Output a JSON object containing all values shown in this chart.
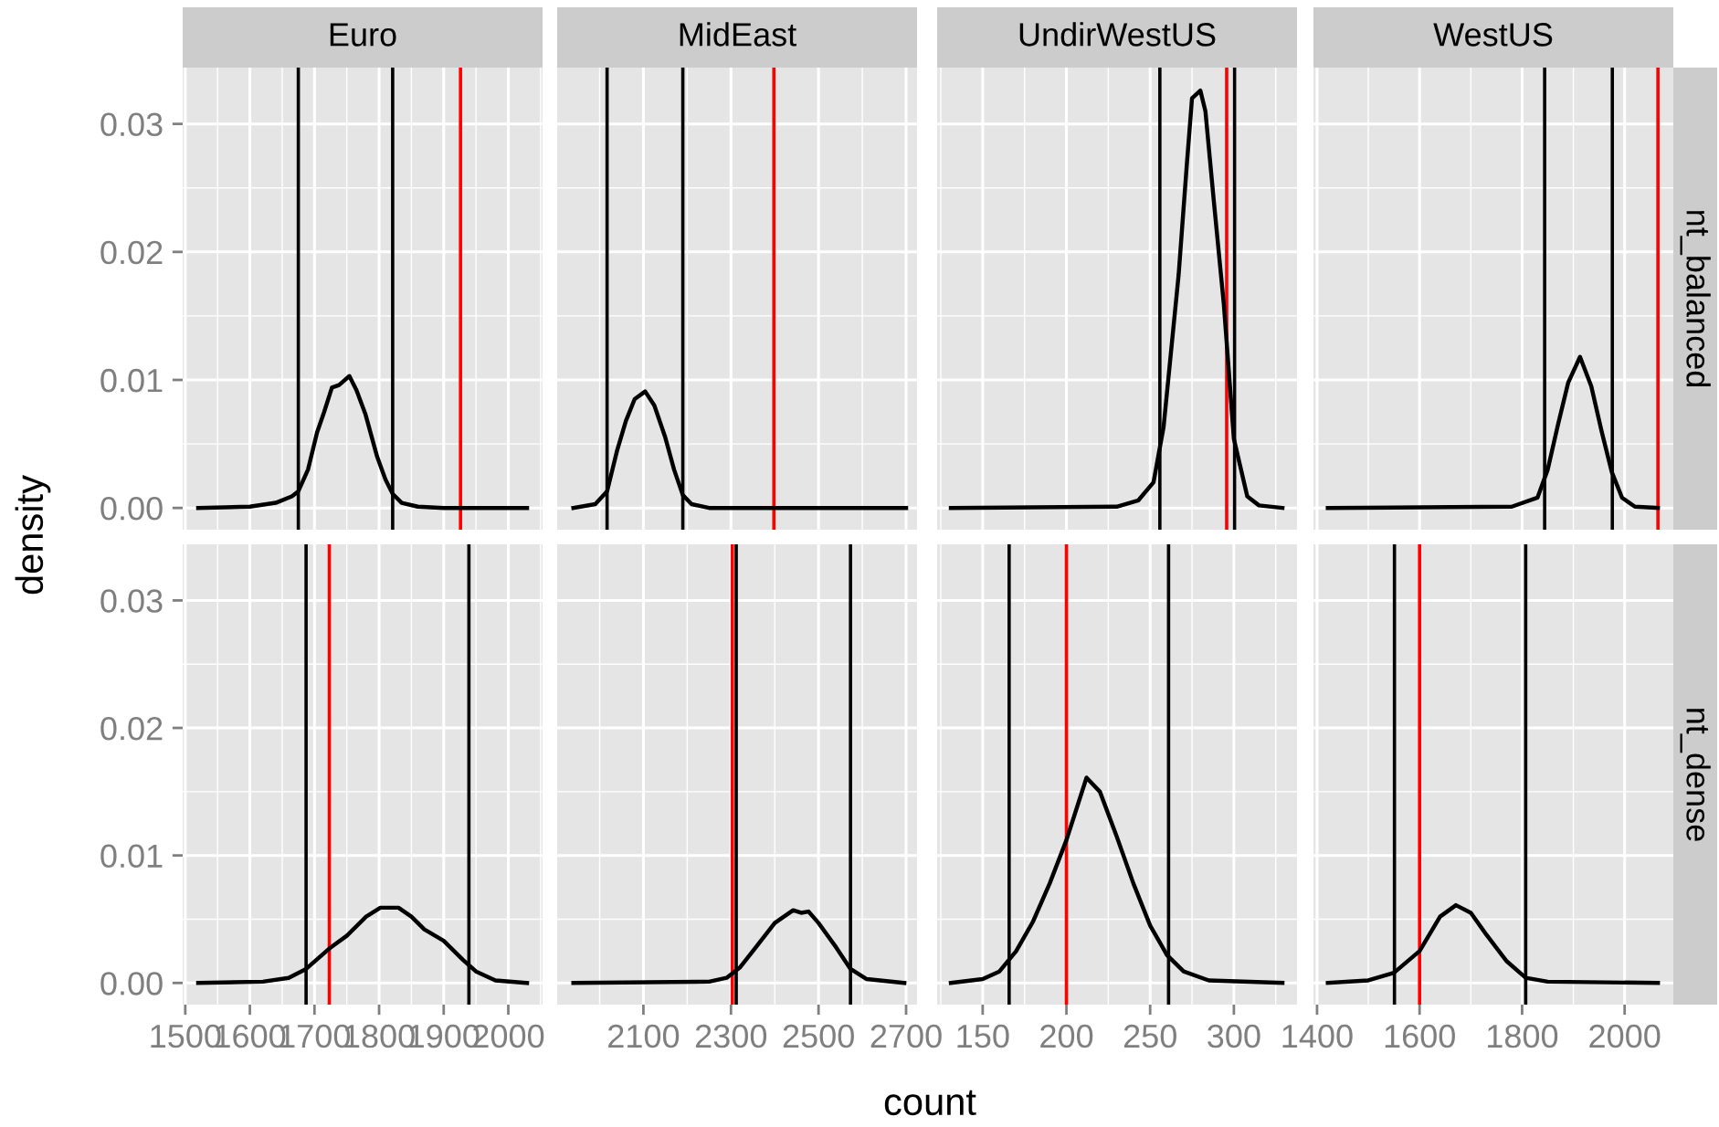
{
  "chart_data": [
    {
      "type": "line",
      "title": "Euro",
      "ylabel": "density",
      "tick_labels": "y",
      "grid": true,
      "xlim": [
        1496,
        2053
      ],
      "ylim": [
        -0.0017,
        0.0344
      ],
      "xticks": [
        {
          "value": 1500,
          "label": null
        },
        {
          "value": 1600,
          "label": null
        },
        {
          "value": 1700,
          "label": null
        },
        {
          "value": 1800,
          "label": null
        },
        {
          "value": 1900,
          "label": null
        },
        {
          "value": 2000,
          "label": null
        }
      ],
      "yticks": [
        {
          "value": 0,
          "label": "0.00"
        },
        {
          "value": 0.01,
          "label": "0.01"
        },
        {
          "value": 0.02,
          "label": "0.02"
        },
        {
          "value": 0.03,
          "label": "0.03"
        }
      ],
      "series": [
        {
          "color": "#000000",
          "x": [
            1520,
            1600,
            1640,
            1665,
            1675,
            1690,
            1704,
            1715,
            1727,
            1738,
            1754,
            1765,
            1779,
            1797,
            1810,
            1821,
            1835,
            1860,
            1900,
            2029
          ],
          "values": [
            0,
            0.0001,
            0.0004,
            0.0009,
            0.0013,
            0.003,
            0.0059,
            0.0075,
            0.0094,
            0.0096,
            0.0103,
            0.0092,
            0.0073,
            0.004,
            0.0022,
            0.0011,
            0.0004,
            0.0001,
            0,
            0
          ]
        }
      ],
      "ref_lines": [
        {
          "axis": "x",
          "value": 1675,
          "color": "#000000"
        },
        {
          "axis": "x",
          "value": 1821,
          "color": "#000000"
        },
        {
          "axis": "x",
          "value": 1926,
          "color": "#ff0000"
        }
      ]
    },
    {
      "type": "line",
      "title": "MidEast",
      "tick_labels": false,
      "grid": true,
      "xlim": [
        1903,
        2725
      ],
      "ylim": [
        -0.0017,
        0.0344
      ],
      "xticks": [
        {
          "value": 2100,
          "label": null
        },
        {
          "value": 2300,
          "label": null
        },
        {
          "value": 2500,
          "label": null
        },
        {
          "value": 2700,
          "label": null
        }
      ],
      "yticks": [
        {
          "value": 0,
          "label": null
        },
        {
          "value": 0.01,
          "label": null
        },
        {
          "value": 0.02,
          "label": null
        },
        {
          "value": 0.03,
          "label": null
        }
      ],
      "series": [
        {
          "color": "#000000",
          "x": [
            1940,
            1990,
            2017,
            2040,
            2060,
            2080,
            2104,
            2125,
            2150,
            2170,
            2190,
            2210,
            2250,
            2700
          ],
          "values": [
            0,
            0.0003,
            0.0013,
            0.0045,
            0.0068,
            0.0085,
            0.0091,
            0.008,
            0.0055,
            0.003,
            0.001,
            0.0003,
            0,
            0
          ]
        }
      ],
      "ref_lines": [
        {
          "axis": "x",
          "value": 2017,
          "color": "#000000"
        },
        {
          "axis": "x",
          "value": 2190,
          "color": "#000000"
        },
        {
          "axis": "x",
          "value": 2398,
          "color": "#ff0000"
        }
      ]
    },
    {
      "type": "line",
      "title": "UndirWestUS",
      "tick_labels": false,
      "grid": true,
      "xlim": [
        122.8,
        337.7
      ],
      "ylim": [
        -0.0017,
        0.0344
      ],
      "xticks": [
        {
          "value": 150,
          "label": null
        },
        {
          "value": 200,
          "label": null
        },
        {
          "value": 250,
          "label": null
        },
        {
          "value": 300,
          "label": null
        }
      ],
      "yticks": [
        {
          "value": 0,
          "label": null
        },
        {
          "value": 0.01,
          "label": null
        },
        {
          "value": 0.02,
          "label": null
        },
        {
          "value": 0.03,
          "label": null
        }
      ],
      "series": [
        {
          "color": "#000000",
          "x": [
            131,
            230,
            243,
            252,
            258,
            267,
            272,
            275,
            280,
            283,
            288,
            294,
            300,
            308,
            315,
            329
          ],
          "values": [
            0,
            0.0001,
            0.0006,
            0.002,
            0.0063,
            0.0182,
            0.027,
            0.032,
            0.0326,
            0.031,
            0.024,
            0.0159,
            0.0054,
            0.0009,
            0.0002,
            0
          ]
        }
      ],
      "ref_lines": [
        {
          "axis": "x",
          "value": 255.8,
          "color": "#000000"
        },
        {
          "axis": "x",
          "value": 300.4,
          "color": "#000000"
        },
        {
          "axis": "x",
          "value": 295.7,
          "color": "#ff0000"
        }
      ]
    },
    {
      "type": "line",
      "title": "WestUS",
      "y2label": "nt_balanced",
      "tick_labels": false,
      "grid": true,
      "xlim": [
        1393,
        2095
      ],
      "ylim": [
        -0.0017,
        0.0344
      ],
      "xticks": [
        {
          "value": 1400,
          "label": null
        },
        {
          "value": 1600,
          "label": null
        },
        {
          "value": 1800,
          "label": null
        },
        {
          "value": 2000,
          "label": null
        }
      ],
      "yticks": [
        {
          "value": 0,
          "label": null
        },
        {
          "value": 0.01,
          "label": null
        },
        {
          "value": 0.02,
          "label": null
        },
        {
          "value": 0.03,
          "label": null
        }
      ],
      "series": [
        {
          "color": "#000000",
          "x": [
            1421,
            1780,
            1830,
            1850,
            1870,
            1890,
            1913,
            1935,
            1955,
            1975,
            1995,
            2020,
            2065
          ],
          "values": [
            0,
            0.0001,
            0.0008,
            0.003,
            0.0065,
            0.0098,
            0.0118,
            0.0095,
            0.006,
            0.0028,
            0.0008,
            0.0001,
            0
          ]
        }
      ],
      "ref_lines": [
        {
          "axis": "x",
          "value": 1844,
          "color": "#000000"
        },
        {
          "axis": "x",
          "value": 1976,
          "color": "#000000"
        },
        {
          "axis": "x",
          "value": 2065,
          "color": "#ff0000"
        }
      ]
    },
    {
      "type": "line",
      "grid": true,
      "xlim": [
        1496,
        2053
      ],
      "ylim": [
        -0.0017,
        0.0344
      ],
      "xticks": [
        1500,
        1600,
        1700,
        1800,
        1900,
        2000
      ],
      "yticks": [
        {
          "value": 0,
          "label": "0.00"
        },
        {
          "value": 0.01,
          "label": "0.01"
        },
        {
          "value": 0.02,
          "label": "0.02"
        },
        {
          "value": 0.03,
          "label": "0.03"
        }
      ],
      "series": [
        {
          "color": "#000000",
          "x": [
            1520,
            1620,
            1660,
            1687,
            1723,
            1750,
            1780,
            1802,
            1830,
            1850,
            1870,
            1900,
            1930,
            1950,
            1980,
            2029
          ],
          "values": [
            0,
            0.0001,
            0.0004,
            0.0011,
            0.0027,
            0.0037,
            0.0052,
            0.0059,
            0.0059,
            0.0052,
            0.0042,
            0.0033,
            0.0018,
            0.0009,
            0.0002,
            0
          ]
        }
      ],
      "ref_lines": [
        {
          "axis": "x",
          "value": 1687,
          "color": "#000000"
        },
        {
          "axis": "x",
          "value": 1939,
          "color": "#000000"
        },
        {
          "axis": "x",
          "value": 1723,
          "color": "#ff0000"
        }
      ]
    },
    {
      "type": "line",
      "xlabel": "count",
      "tick_labels": "x",
      "grid": true,
      "xlim": [
        1903,
        2725
      ],
      "ylim": [
        -0.0017,
        0.0344
      ],
      "xticks": [
        2100,
        2300,
        2500,
        2700
      ],
      "yticks": [
        {
          "value": 0,
          "label": null
        },
        {
          "value": 0.01,
          "label": null
        },
        {
          "value": 0.02,
          "label": null
        },
        {
          "value": 0.03,
          "label": null
        }
      ],
      "series": [
        {
          "color": "#000000",
          "x": [
            1940,
            2250,
            2290,
            2320,
            2350,
            2400,
            2442,
            2460,
            2477,
            2500,
            2540,
            2573,
            2610,
            2696
          ],
          "values": [
            0,
            0.0001,
            0.0004,
            0.0012,
            0.0025,
            0.0047,
            0.0057,
            0.0055,
            0.0056,
            0.0047,
            0.0028,
            0.0011,
            0.0003,
            0
          ]
        }
      ],
      "ref_lines": [
        {
          "axis": "x",
          "value": 2312,
          "color": "#000000"
        },
        {
          "axis": "x",
          "value": 2573,
          "color": "#000000"
        },
        {
          "axis": "x",
          "value": 2303,
          "color": "#ff0000"
        }
      ]
    },
    {
      "type": "line",
      "tick_labels": "x",
      "grid": true,
      "xlim": [
        122.8,
        337.7
      ],
      "ylim": [
        -0.0017,
        0.0344
      ],
      "xticks": [
        150,
        200,
        250,
        300
      ],
      "yticks": [
        {
          "value": 0,
          "label": null
        },
        {
          "value": 0.01,
          "label": null
        },
        {
          "value": 0.02,
          "label": null
        },
        {
          "value": 0.03,
          "label": null
        }
      ],
      "series": [
        {
          "color": "#000000",
          "x": [
            131,
            150,
            160,
            170,
            180,
            190,
            200,
            212,
            220,
            230,
            240,
            250,
            260,
            270,
            285,
            329
          ],
          "values": [
            0,
            0.0003,
            0.0009,
            0.0025,
            0.0048,
            0.0078,
            0.0112,
            0.0161,
            0.015,
            0.0115,
            0.0078,
            0.0045,
            0.0022,
            0.0009,
            0.0002,
            0
          ]
        }
      ],
      "ref_lines": [
        {
          "axis": "x",
          "value": 165.8,
          "color": "#000000"
        },
        {
          "axis": "x",
          "value": 261,
          "color": "#000000"
        },
        {
          "axis": "x",
          "value": 200,
          "color": "#ff0000"
        }
      ]
    },
    {
      "type": "line",
      "y2label": "nt_dense",
      "tick_labels": "x",
      "grid": true,
      "xlim": [
        1393,
        2095
      ],
      "ylim": [
        -0.0017,
        0.0344
      ],
      "xticks": [
        1400,
        1600,
        1800,
        2000
      ],
      "yticks": [
        {
          "value": 0,
          "label": null
        },
        {
          "value": 0.01,
          "label": null
        },
        {
          "value": 0.02,
          "label": null
        },
        {
          "value": 0.03,
          "label": null
        }
      ],
      "series": [
        {
          "color": "#000000",
          "x": [
            1421,
            1500,
            1550,
            1600,
            1640,
            1671,
            1700,
            1730,
            1770,
            1807,
            1850,
            2065
          ],
          "values": [
            0,
            0.0002,
            0.0008,
            0.0025,
            0.0052,
            0.0061,
            0.0055,
            0.0038,
            0.0017,
            0.0004,
            0.0001,
            0
          ]
        }
      ],
      "ref_lines": [
        {
          "axis": "x",
          "value": 1551,
          "color": "#000000"
        },
        {
          "axis": "x",
          "value": 1807,
          "color": "#000000"
        },
        {
          "axis": "x",
          "value": 1600,
          "color": "#ff0000"
        }
      ]
    }
  ]
}
